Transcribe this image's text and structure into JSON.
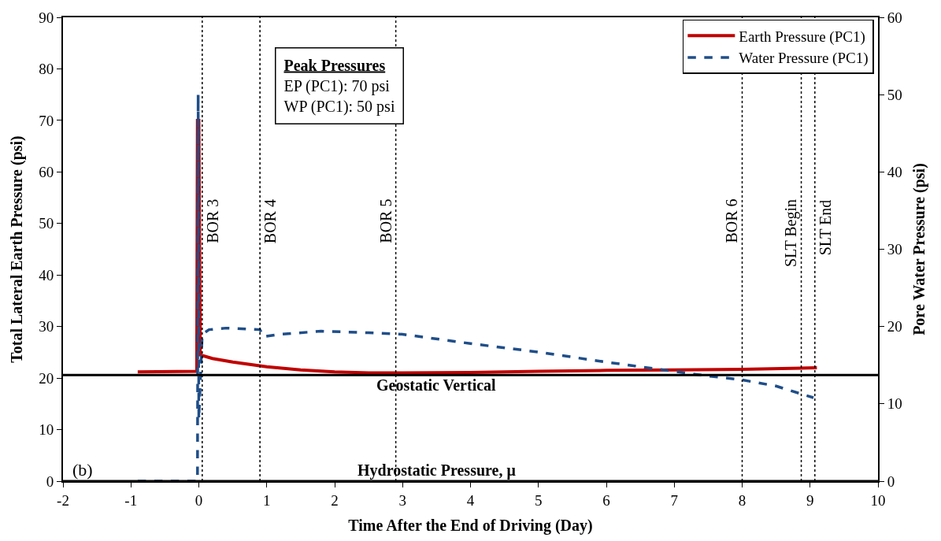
{
  "chart_data": {
    "type": "line",
    "xlabel": "Time After the End of Driving (Day)",
    "ylabel": "Total Lateral Earth Pressure (psi)",
    "y2label": "Pore Water Pressure (psi)",
    "xlim": [
      -2,
      10
    ],
    "xticks": [
      -2,
      -1,
      0,
      1,
      2,
      3,
      4,
      5,
      6,
      7,
      8,
      9,
      10
    ],
    "ylim": [
      0,
      90
    ],
    "yticks": [
      0,
      10,
      20,
      30,
      40,
      50,
      60,
      70,
      80,
      90
    ],
    "y2lim": [
      0,
      60
    ],
    "y2ticks": [
      0,
      10,
      20,
      30,
      40,
      50,
      60
    ],
    "series": [
      {
        "name": "Earth Pressure (PC1)",
        "color": "#c00000",
        "line_style": "solid",
        "x": [
          -0.9,
          -0.03,
          -0.02,
          0,
          0.02,
          0.2,
          0.5,
          1,
          1.5,
          2,
          2.5,
          3,
          4,
          5,
          6,
          7,
          8,
          9.1
        ],
        "values": [
          21.2,
          21.3,
          70,
          70,
          24.5,
          23.8,
          23.1,
          22.2,
          21.6,
          21.2,
          21.0,
          21.0,
          21.1,
          21.3,
          21.5,
          21.6,
          21.7,
          22.0
        ]
      },
      {
        "name": "Water Pressure (PC1)",
        "color": "#1f4e89",
        "line_style": "dashed",
        "axis": "y2",
        "x": [
          -0.9,
          -0.05,
          -0.02,
          -0.01,
          0.0,
          0.05,
          0.15,
          0.4,
          0.9,
          0.95,
          1.2,
          1.8,
          2.5,
          3,
          4,
          5,
          6,
          7,
          7.5,
          8,
          8.5,
          8.9,
          9.05
        ],
        "values": [
          0,
          0,
          0,
          50,
          8,
          19,
          19.6,
          19.8,
          19.6,
          18.7,
          19.0,
          19.4,
          19.2,
          19.0,
          17.8,
          16.7,
          15.4,
          14.2,
          13.6,
          13.1,
          12.3,
          11.2,
          10.8
        ]
      }
    ],
    "ref_lines": [
      {
        "axis": "x",
        "value": 0.05,
        "label": "BOR 3",
        "line_style": "dotted",
        "color": "#000000"
      },
      {
        "axis": "x",
        "value": 0.9,
        "label": "BOR 4",
        "line_style": "dotted",
        "color": "#000000"
      },
      {
        "axis": "x",
        "value": 2.9,
        "label": "BOR 5",
        "line_style": "dotted",
        "color": "#000000"
      },
      {
        "axis": "x",
        "value": 8.0,
        "label": "BOR 6",
        "line_style": "dotted",
        "color": "#000000"
      },
      {
        "axis": "x",
        "value": 8.87,
        "label": "SLT Begin",
        "line_style": "dotted",
        "color": "#000000"
      },
      {
        "axis": "x",
        "value": 9.07,
        "label": "SLT End",
        "line_style": "dotted",
        "color": "#000000"
      },
      {
        "axis": "y",
        "value": 20.6,
        "label": "Geostatic Vertical",
        "line_style": "solid",
        "color": "#000000"
      },
      {
        "axis": "y2",
        "value": 0,
        "label": "Hydrostatic Pressure, μ",
        "line_style": "solid",
        "color": "#000000"
      }
    ],
    "annotations": [
      "Peak Pressures\nEP (PC1): 70 psi\nWP (PC1): 50 psi",
      "(b)"
    ],
    "legend": "top right",
    "grid": false,
    "marker": "none"
  }
}
